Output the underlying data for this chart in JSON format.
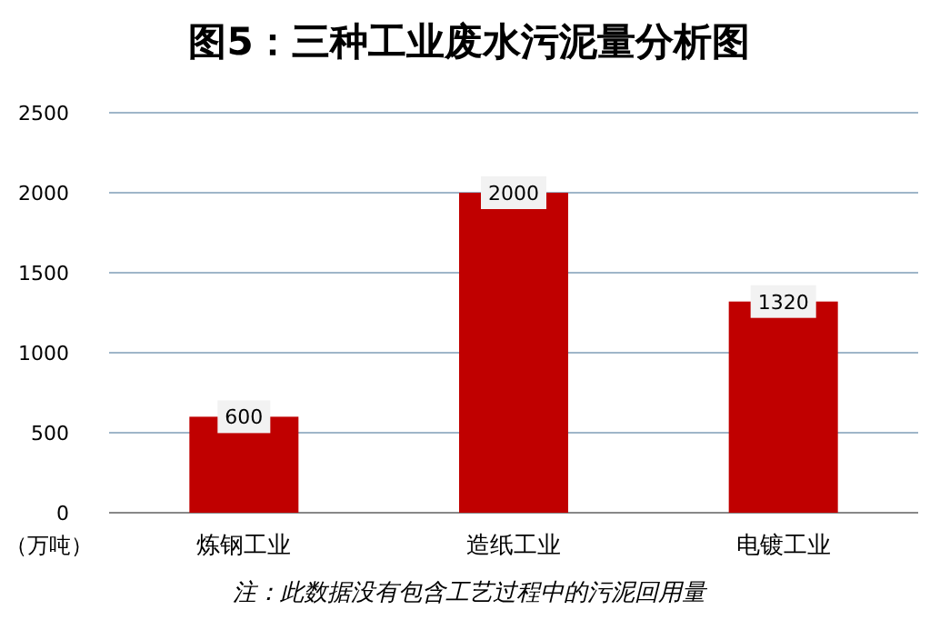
{
  "chart_data": {
    "type": "bar",
    "title": "图5：三种工业废水污泥量分析图",
    "ylabel": "（万吨）",
    "categories": [
      "炼钢工业",
      "造纸工业",
      "电镀工业"
    ],
    "values": [
      600,
      2000,
      1320
    ],
    "color": "#c00000",
    "ylim": [
      0,
      2500
    ],
    "yticks": [
      0,
      500,
      1000,
      1500,
      2000,
      2500
    ],
    "grid": "y",
    "data_labels": true,
    "annotations": [
      "注：此数据没有包含工艺过程中的污泥回用量"
    ]
  }
}
